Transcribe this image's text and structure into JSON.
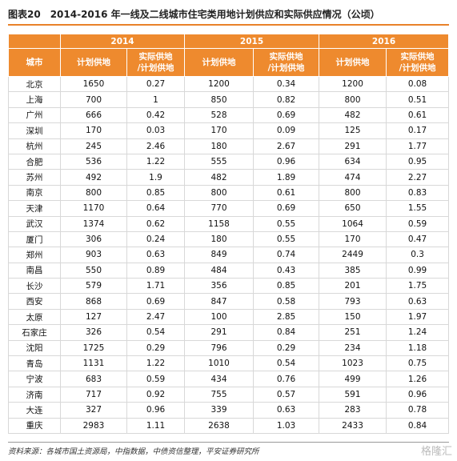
{
  "header": {
    "label": "图表20",
    "title": "2014-2016 年一线及二线城市住宅类用地计划供应和实际供应情况（公顷）"
  },
  "table": {
    "years": [
      "2014",
      "2015",
      "2016"
    ],
    "columns": [
      "城市",
      "计划供地",
      [
        "实际供地",
        "/计划供地"
      ]
    ],
    "rows": [
      [
        "北京",
        1650,
        0.27,
        1200,
        0.34,
        1200,
        0.08
      ],
      [
        "上海",
        700,
        1,
        850,
        0.82,
        800,
        0.51
      ],
      [
        "广州",
        666,
        0.42,
        528,
        0.69,
        482,
        0.61
      ],
      [
        "深圳",
        170,
        0.03,
        170,
        0.09,
        125,
        0.17
      ],
      [
        "杭州",
        245,
        2.46,
        180,
        2.67,
        291,
        1.77
      ],
      [
        "合肥",
        536,
        1.22,
        555,
        0.96,
        634,
        0.95
      ],
      [
        "苏州",
        492,
        1.9,
        482,
        1.89,
        474,
        2.27
      ],
      [
        "南京",
        800,
        0.85,
        800,
        0.61,
        800,
        0.83
      ],
      [
        "天津",
        1170,
        0.64,
        770,
        0.69,
        650,
        1.55
      ],
      [
        "武汉",
        1374,
        0.62,
        1158,
        0.55,
        1064,
        0.59
      ],
      [
        "厦门",
        306,
        0.24,
        180,
        0.55,
        170,
        0.47
      ],
      [
        "郑州",
        903,
        0.63,
        849,
        0.74,
        2449,
        0.3
      ],
      [
        "南昌",
        550,
        0.89,
        484,
        0.43,
        385,
        0.99
      ],
      [
        "长沙",
        579,
        1.71,
        356,
        0.85,
        201,
        1.75
      ],
      [
        "西安",
        868,
        0.69,
        847,
        0.58,
        793,
        0.63
      ],
      [
        "太原",
        127,
        2.47,
        100,
        2.85,
        150,
        1.97
      ],
      [
        "石家庄",
        326,
        0.54,
        291,
        0.84,
        251,
        1.24
      ],
      [
        "沈阳",
        1725,
        0.29,
        796,
        0.29,
        234,
        1.18
      ],
      [
        "青岛",
        1131,
        1.22,
        1010,
        0.54,
        1023,
        0.75
      ],
      [
        "宁波",
        683,
        0.59,
        434,
        0.76,
        499,
        1.26
      ],
      [
        "济南",
        717,
        0.92,
        755,
        0.57,
        591,
        0.96
      ],
      [
        "大连",
        327,
        0.96,
        339,
        0.63,
        283,
        0.78
      ],
      [
        "重庆",
        2983,
        1.11,
        2638,
        1.03,
        2433,
        0.84
      ]
    ]
  },
  "footer": {
    "source": "资料来源：各城市国土资源局，中指数据，中债资信整理，平安证券研究所",
    "watermark": "格隆汇"
  }
}
